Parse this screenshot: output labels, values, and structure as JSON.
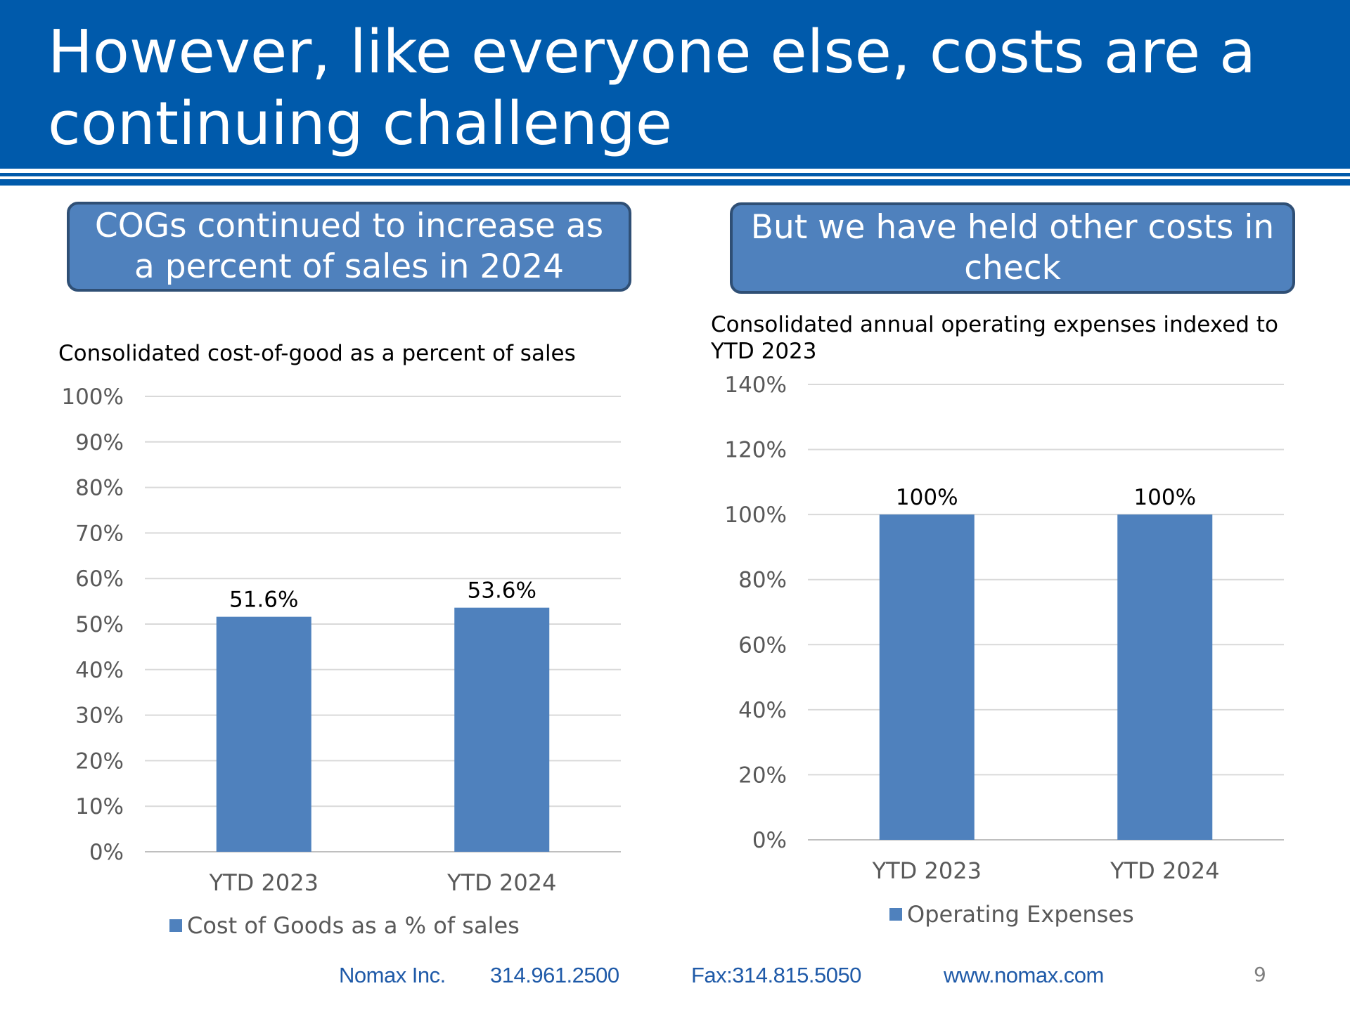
{
  "slide": {
    "title": "However, like everyone else, costs are a continuing challenge",
    "page_number": "9",
    "accent_color": "#005aab",
    "callout_color": "#4f81bd"
  },
  "left": {
    "callout": "COGs continued to increase as a percent of sales in 2024",
    "chart_title": "Consolidated cost-of-good as a percent of sales"
  },
  "right": {
    "callout": "But we have held other costs in check",
    "chart_title": "Consolidated annual operating expenses indexed to YTD 2023"
  },
  "chart_data": [
    {
      "type": "bar",
      "title": "Consolidated cost-of-good as a percent of sales",
      "categories": [
        "YTD 2023",
        "YTD 2024"
      ],
      "series": [
        {
          "name": "Cost of Goods as a % of sales",
          "values": [
            51.6,
            53.6
          ],
          "color": "#4f81bd"
        }
      ],
      "data_labels": [
        "51.6%",
        "53.6%"
      ],
      "ylim": [
        0,
        100
      ],
      "yticks": [
        0,
        10,
        20,
        30,
        40,
        50,
        60,
        70,
        80,
        90,
        100
      ],
      "ytick_labels": [
        "0%",
        "10%",
        "20%",
        "30%",
        "40%",
        "50%",
        "60%",
        "70%",
        "80%",
        "90%",
        "100%"
      ],
      "grid": true,
      "legend": "bottom"
    },
    {
      "type": "bar",
      "title": "Consolidated annual operating expenses indexed to YTD 2023",
      "categories": [
        "YTD 2023",
        "YTD 2024"
      ],
      "series": [
        {
          "name": "Operating Expenses",
          "values": [
            100,
            100
          ],
          "color": "#4f81bd"
        }
      ],
      "data_labels": [
        "100%",
        "100%"
      ],
      "ylim": [
        0,
        140
      ],
      "yticks": [
        0,
        20,
        40,
        60,
        80,
        100,
        120,
        140
      ],
      "ytick_labels": [
        "0%",
        "20%",
        "40%",
        "60%",
        "80%",
        "100%",
        "120%",
        "140%"
      ],
      "grid": true,
      "legend": "bottom"
    }
  ],
  "footer": {
    "company": "Nomax Inc.",
    "phone": "314.961.2500",
    "fax": "Fax:314.815.5050",
    "website": "www.nomax.com"
  }
}
